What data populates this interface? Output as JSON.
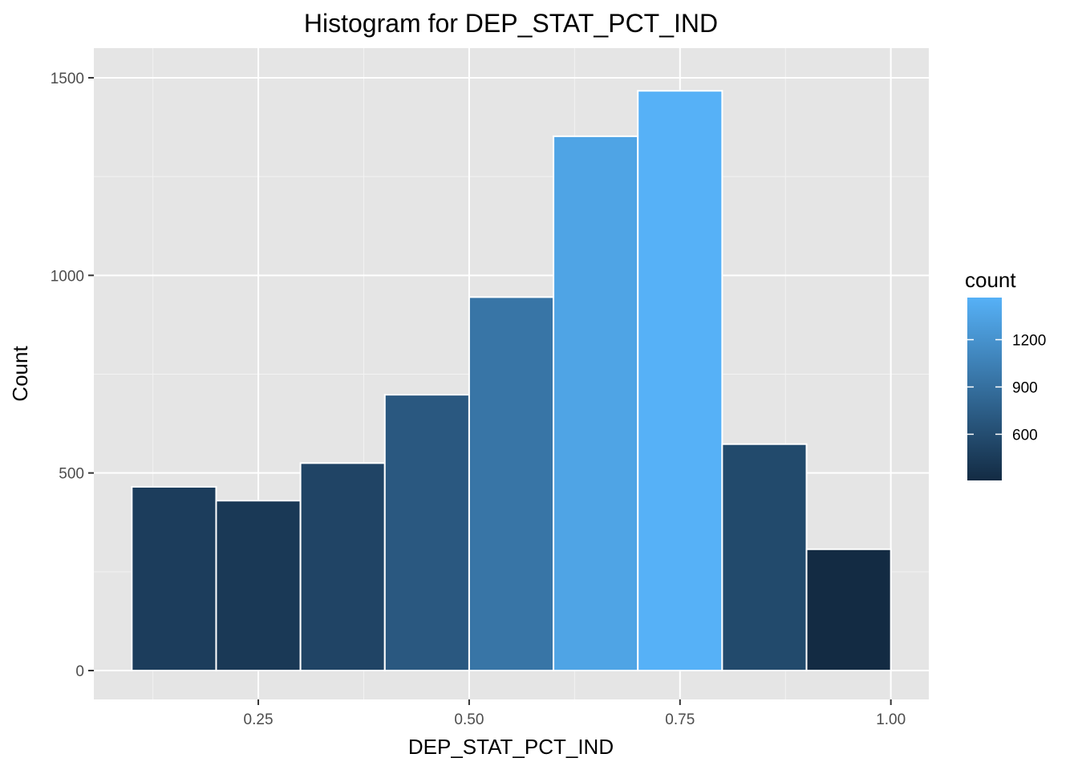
{
  "chart_data": {
    "type": "bar",
    "title": "Histogram for DEP_STAT_PCT_IND",
    "xlabel": "DEP_STAT_PCT_IND",
    "ylabel": "Count",
    "bins": [
      {
        "x0": 0.1,
        "x1": 0.2,
        "count": 465
      },
      {
        "x0": 0.2,
        "x1": 0.3,
        "count": 430
      },
      {
        "x0": 0.3,
        "x1": 0.4,
        "count": 525
      },
      {
        "x0": 0.4,
        "x1": 0.5,
        "count": 698
      },
      {
        "x0": 0.5,
        "x1": 0.6,
        "count": 945
      },
      {
        "x0": 0.6,
        "x1": 0.7,
        "count": 1352
      },
      {
        "x0": 0.7,
        "x1": 0.8,
        "count": 1467
      },
      {
        "x0": 0.8,
        "x1": 0.9,
        "count": 573
      },
      {
        "x0": 0.9,
        "x1": 1.0,
        "count": 307
      }
    ],
    "xlim": [
      0.055,
      1.045
    ],
    "ylim": [
      -73,
      1575
    ],
    "x_ticks": [
      0.25,
      0.5,
      0.75,
      1.0
    ],
    "x_tick_labels": [
      "0.25",
      "0.50",
      "0.75",
      "1.00"
    ],
    "y_ticks": [
      0,
      500,
      1000,
      1500
    ],
    "y_tick_labels": [
      "0",
      "500",
      "1000",
      "1500"
    ],
    "grid": true,
    "legend": {
      "title": "count",
      "position": "right",
      "range": [
        307,
        1467
      ],
      "ticks": [
        600,
        900,
        1200
      ],
      "tick_labels": [
        "600",
        "900",
        "1200"
      ],
      "color_low": "#132B43",
      "color_high": "#56B1F7"
    },
    "panel_background": "#e5e5e5",
    "bar_outline": "#ffffff"
  }
}
